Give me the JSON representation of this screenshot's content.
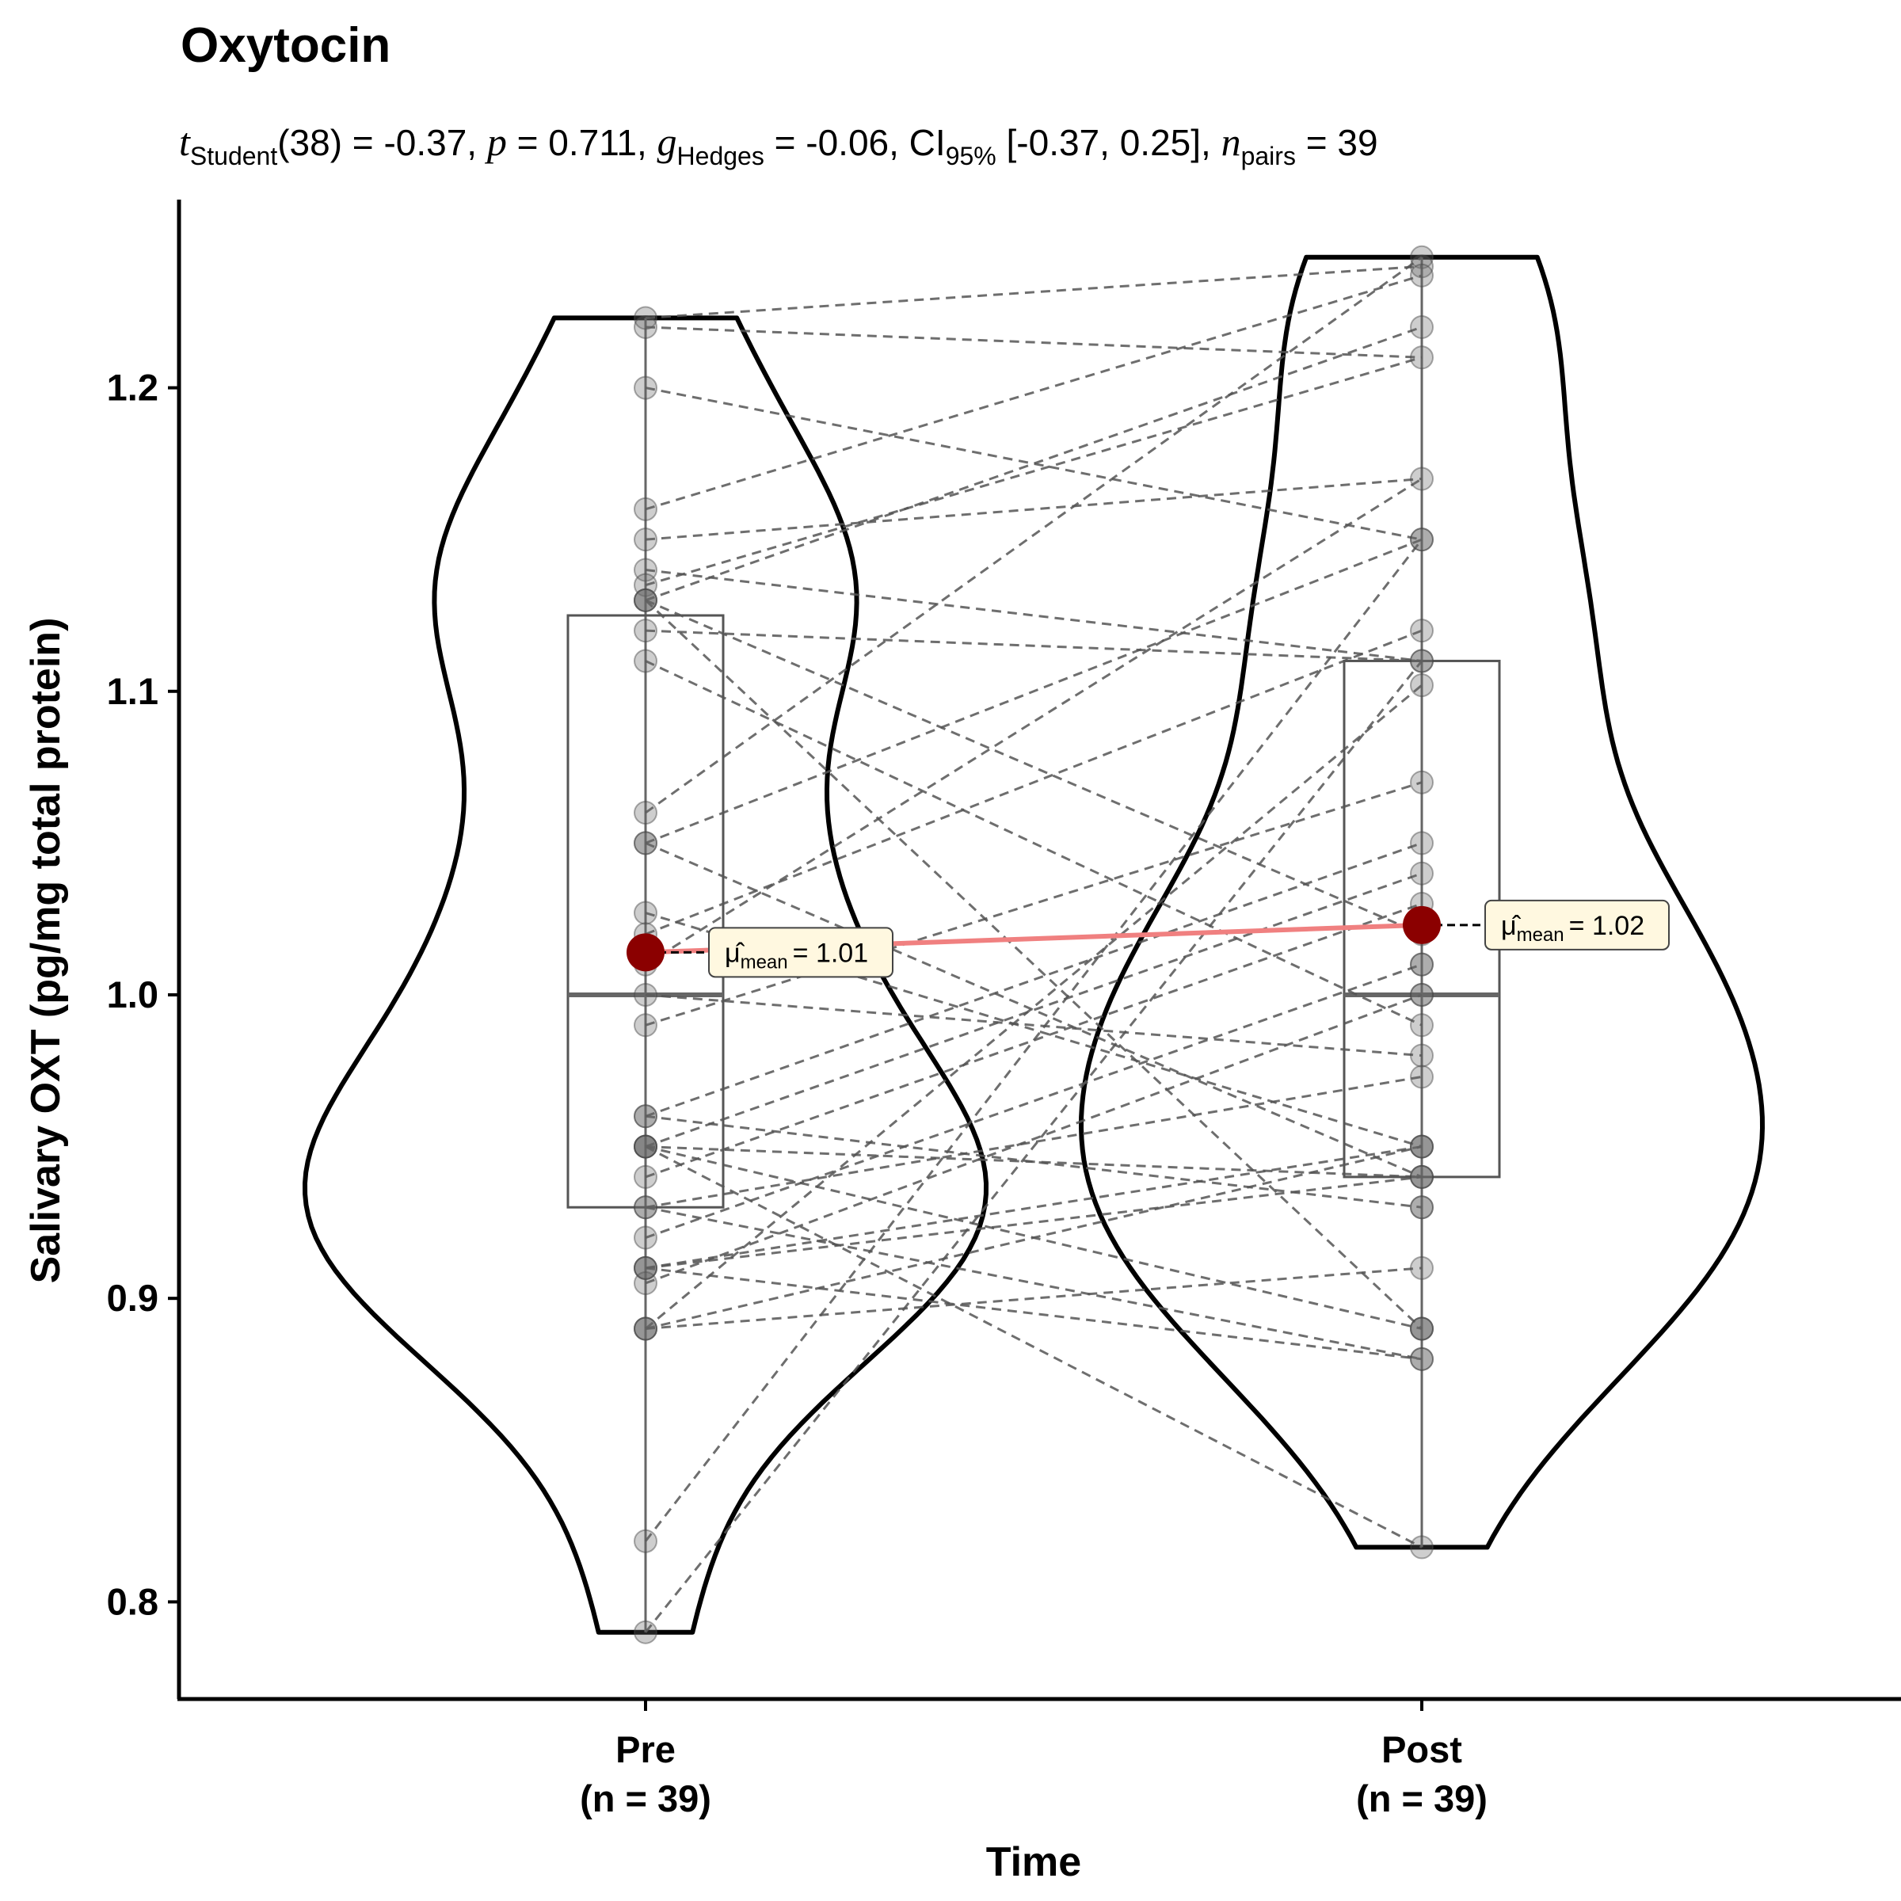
{
  "chart_data": {
    "type": "violin",
    "title": "Oxytocin",
    "subtitle": {
      "t_symbol": "t",
      "t_sub": "Student",
      "df_part": "(38) = -0.37, ",
      "p_symbol": "p",
      "p_part": " = 0.711, ",
      "g_symbol": "g",
      "g_sub": "Hedges",
      "g_part": " = -0.06, CI",
      "ci_sub": "95%",
      "ci_part": " [-0.37, 0.25], ",
      "n_symbol": "n",
      "n_sub": "pairs",
      "n_part": " = 39"
    },
    "xlabel": "Time",
    "ylabel": "Salivary OXT (pg/mg total protein)",
    "ylim": [
      0.768,
      1.262
    ],
    "yticks": [
      0.8,
      0.9,
      1.0,
      1.1,
      1.2
    ],
    "ytick_labels": [
      "0.8",
      "0.9",
      "1.0",
      "1.1",
      "1.2"
    ],
    "categories": [
      "Pre",
      "Post"
    ],
    "category_counts": [
      "(n = 39)",
      "(n = 39)"
    ],
    "groups": [
      {
        "name": "Pre",
        "values": [
          1.223,
          1.22,
          1.2,
          1.16,
          1.15,
          1.14,
          1.135,
          1.13,
          1.13,
          1.12,
          1.11,
          1.06,
          1.05,
          1.05,
          1.027,
          1.02,
          1.01,
          1.0,
          0.99,
          0.96,
          0.96,
          0.95,
          0.95,
          0.95,
          0.94,
          0.93,
          0.93,
          0.92,
          0.91,
          0.91,
          0.905,
          0.89,
          0.89,
          0.89,
          0.82,
          0.79,
          1.13,
          0.95,
          0.91
        ],
        "median": 1.0,
        "q1": 0.93,
        "q3": 1.125,
        "mean": 1.014,
        "mean_label": "= 1.01",
        "violin_min": 0.79,
        "violin_max": 1.223
      },
      {
        "name": "Post",
        "values": [
          1.243,
          1.24,
          1.237,
          1.22,
          1.21,
          1.17,
          1.15,
          1.12,
          1.11,
          1.102,
          1.07,
          1.05,
          1.04,
          1.03,
          1.02,
          1.01,
          1.0,
          0.99,
          0.98,
          0.973,
          0.95,
          0.95,
          0.94,
          0.94,
          0.93,
          0.91,
          0.89,
          0.89,
          0.88,
          0.88,
          0.818,
          1.15,
          1.11,
          1.0,
          0.95,
          0.94,
          0.93,
          0.89,
          1.01
        ],
        "median": 1.0,
        "q1": 0.94,
        "q3": 1.11,
        "mean": 1.023,
        "mean_label": "= 1.02",
        "violin_min": 0.818,
        "violin_max": 1.243
      }
    ],
    "pairs": [
      [
        1.223,
        1.24
      ],
      [
        1.22,
        1.21
      ],
      [
        1.2,
        1.15
      ],
      [
        1.16,
        1.237
      ],
      [
        1.15,
        1.17
      ],
      [
        1.14,
        1.11
      ],
      [
        1.135,
        1.21
      ],
      [
        1.13,
        1.22
      ],
      [
        1.13,
        1.02
      ],
      [
        1.12,
        1.11
      ],
      [
        1.11,
        0.99
      ],
      [
        1.06,
        1.243
      ],
      [
        1.05,
        0.94
      ],
      [
        1.05,
        1.15
      ],
      [
        1.027,
        0.95
      ],
      [
        1.02,
        1.12
      ],
      [
        1.01,
        1.17
      ],
      [
        1.0,
        0.98
      ],
      [
        0.99,
        1.07
      ],
      [
        0.96,
        0.93
      ],
      [
        0.96,
        1.05
      ],
      [
        0.95,
        0.89
      ],
      [
        0.95,
        1.04
      ],
      [
        0.95,
        0.94
      ],
      [
        0.94,
        1.03
      ],
      [
        0.93,
        0.973
      ],
      [
        0.93,
        0.88
      ],
      [
        0.92,
        1.01
      ],
      [
        0.91,
        0.94
      ],
      [
        0.91,
        0.88
      ],
      [
        0.905,
        1.0
      ],
      [
        0.89,
        0.95
      ],
      [
        0.89,
        1.102
      ],
      [
        0.89,
        0.91
      ],
      [
        0.82,
        1.15
      ],
      [
        0.79,
        1.11
      ],
      [
        1.13,
        0.89
      ],
      [
        0.95,
        0.818
      ],
      [
        0.91,
        0.95
      ]
    ],
    "mean_line_color": "#f08080",
    "mean_point_color": "#8b0000",
    "label_fill": "#fff8e0",
    "grid": false,
    "legend": "none"
  }
}
